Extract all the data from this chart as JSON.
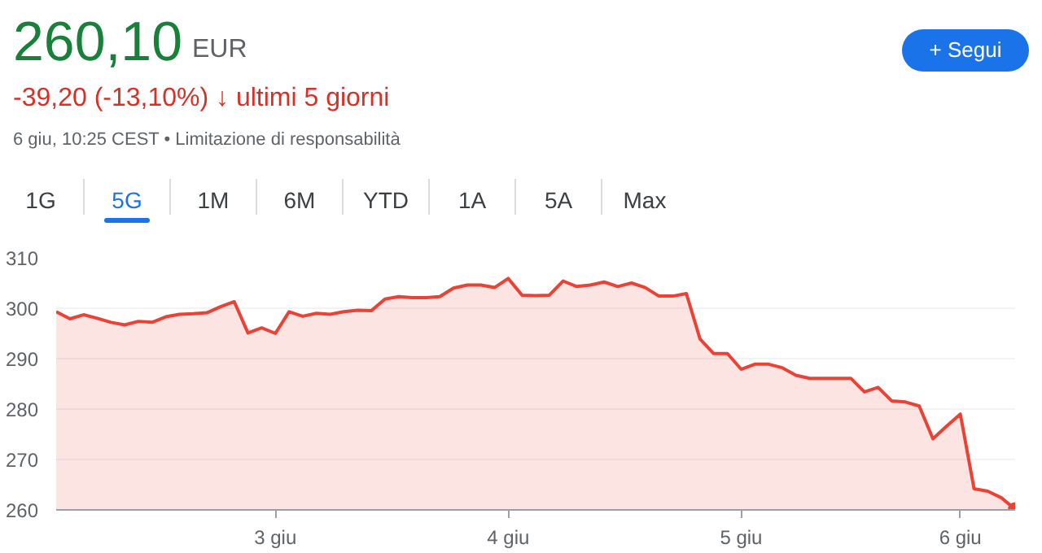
{
  "chart_data": {
    "type": "area",
    "title": "260,10",
    "subtitle": "-39,20 (-13,10%) ↓ ultimi 5 giorni",
    "annotations": [
      "EUR",
      "6 giu, 10:25 CEST • Limitazione di responsabilità",
      "+ Segui",
      "1G",
      "5G",
      "1M",
      "6M",
      "YTD",
      "1A",
      "5A",
      "Max"
    ],
    "categories": [
      null,
      null,
      null,
      null,
      null,
      null,
      null,
      null,
      null,
      null,
      null,
      null,
      null,
      null,
      null,
      null,
      "3 giu",
      null,
      null,
      null,
      null,
      null,
      null,
      null,
      null,
      null,
      null,
      null,
      null,
      null,
      null,
      null,
      null,
      "4 giu",
      null,
      null,
      null,
      null,
      null,
      null,
      null,
      null,
      null,
      null,
      null,
      null,
      null,
      null,
      null,
      null,
      "5 giu",
      null,
      null,
      null,
      null,
      null,
      null,
      null,
      null,
      null,
      null,
      null,
      null,
      null,
      null,
      null,
      "6 giu",
      null,
      null,
      null,
      null
    ],
    "series": [
      {
        "color": "#ea4335",
        "values": [
          299.3,
          297.9,
          298.7,
          298.0,
          297.2,
          296.7,
          297.4,
          297.2,
          298.3,
          298.8,
          298.9,
          299.1,
          300.3,
          301.3,
          295.1,
          296.1,
          295.0,
          299.3,
          298.4,
          299.0,
          298.8,
          299.3,
          299.6,
          299.5,
          301.8,
          302.3,
          302.1,
          302.1,
          302.3,
          304.0,
          304.6,
          304.6,
          304.1,
          305.9,
          302.6,
          302.5,
          302.6,
          305.4,
          304.3,
          304.6,
          305.2,
          304.3,
          305.0,
          304.1,
          302.4,
          302.4,
          302.9,
          293.9,
          291.0,
          291.0,
          287.9,
          288.9,
          288.9,
          288.2,
          286.7,
          286.1,
          286.1,
          286.1,
          286.1,
          283.4,
          284.3,
          281.6,
          281.4,
          280.6,
          274.1,
          276.6,
          279.0,
          264.2,
          263.7,
          262.4,
          260.1
        ]
      }
    ],
    "ylim": [
      260,
      310
    ],
    "yticks": [
      260,
      270,
      280,
      290,
      300,
      310
    ],
    "grid": "y"
  }
}
